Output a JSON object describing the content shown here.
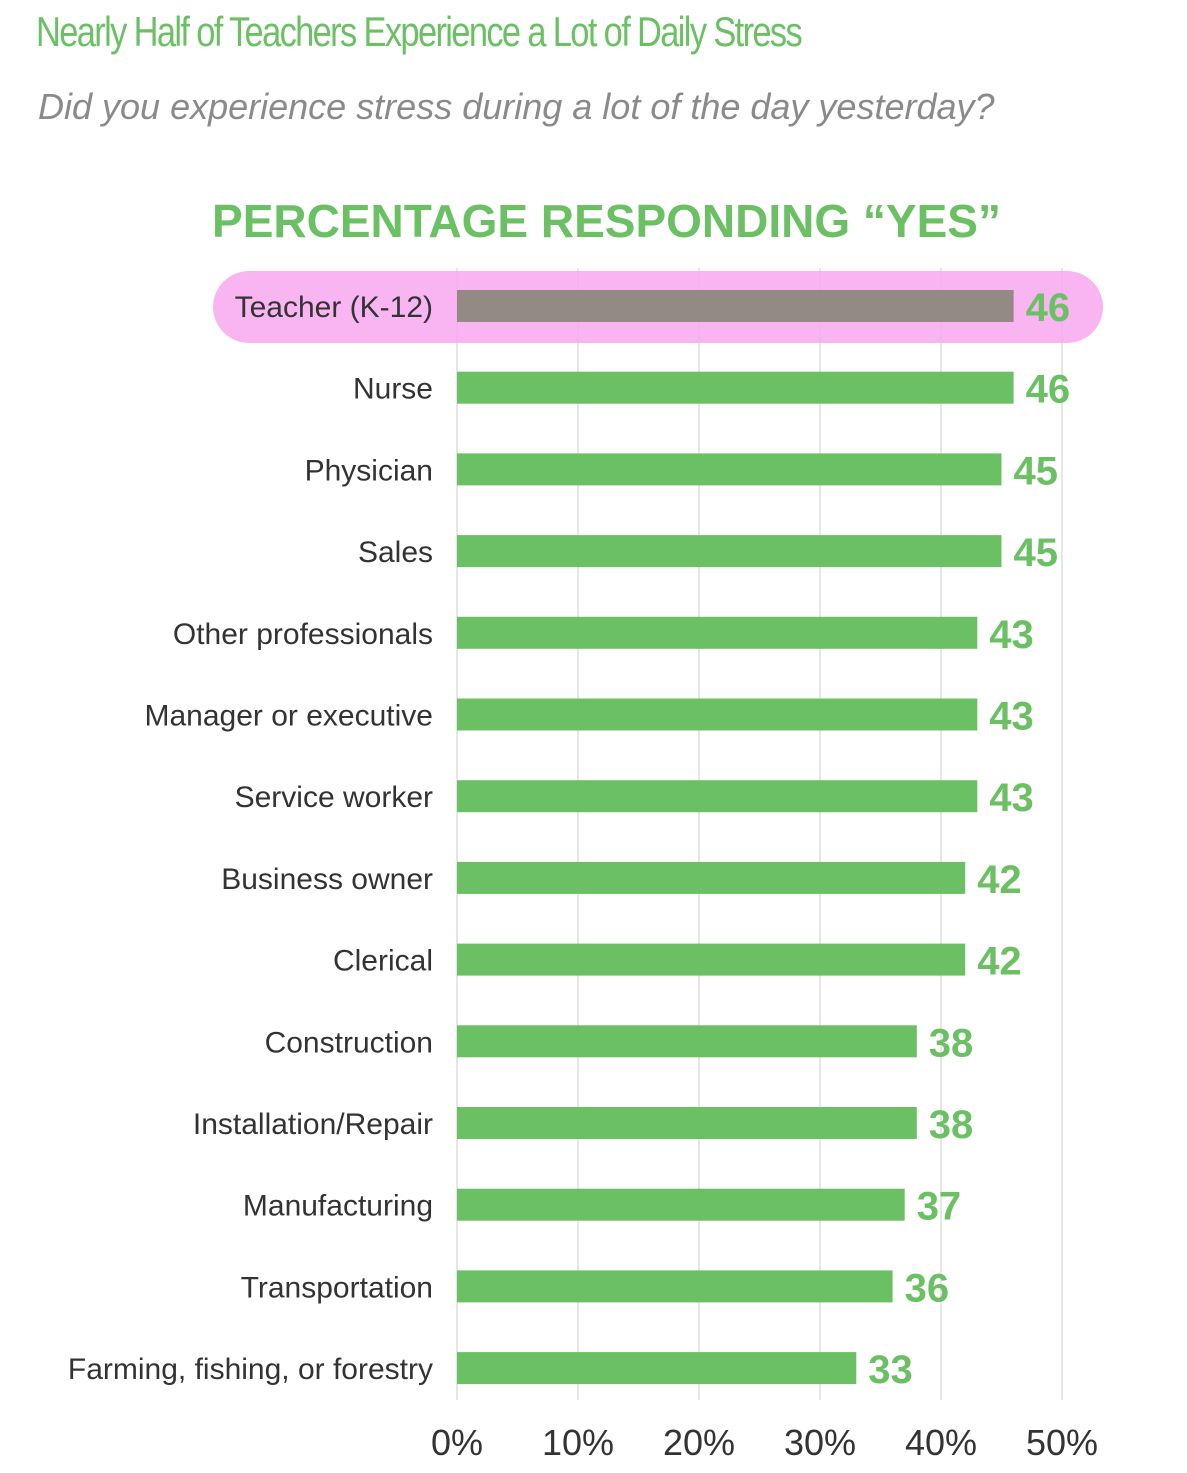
{
  "title": "Nearly Half of Teachers Experience a Lot of Daily Stress",
  "subtitle": "Did you experience stress during a lot of the day yesterday?",
  "colors": {
    "bar": "#6cc064",
    "highlight_bar": "#948a84",
    "highlight_marker": "#f7a8ef",
    "text": "#333333",
    "title": "#6cc064"
  },
  "chart_data": {
    "type": "bar",
    "orientation": "horizontal",
    "title": "PERCENTAGE RESPONDING “YES”",
    "categories": [
      "Teacher (K-12)",
      "Nurse",
      "Physician",
      "Sales",
      "Other professionals",
      "Manager or executive",
      "Service worker",
      "Business owner",
      "Clerical",
      "Construction",
      "Installation/Repair",
      "Manufacturing",
      "Transportation",
      "Farming, fishing, or forestry"
    ],
    "values": [
      46,
      46,
      45,
      45,
      43,
      43,
      43,
      42,
      42,
      38,
      38,
      37,
      36,
      33
    ],
    "value_labels": [
      "46",
      "46",
      "45",
      "45",
      "43",
      "43",
      "43",
      "42",
      "42",
      "38",
      "38",
      "37",
      "36",
      "33"
    ],
    "highlighted_category": "Teacher (K-12)",
    "xlim": [
      0,
      50
    ],
    "xticks": [
      0,
      10,
      20,
      30,
      40,
      50
    ],
    "xtick_labels": [
      "0%",
      "10%",
      "20%",
      "30%",
      "40%",
      "50%"
    ],
    "grid": true
  }
}
